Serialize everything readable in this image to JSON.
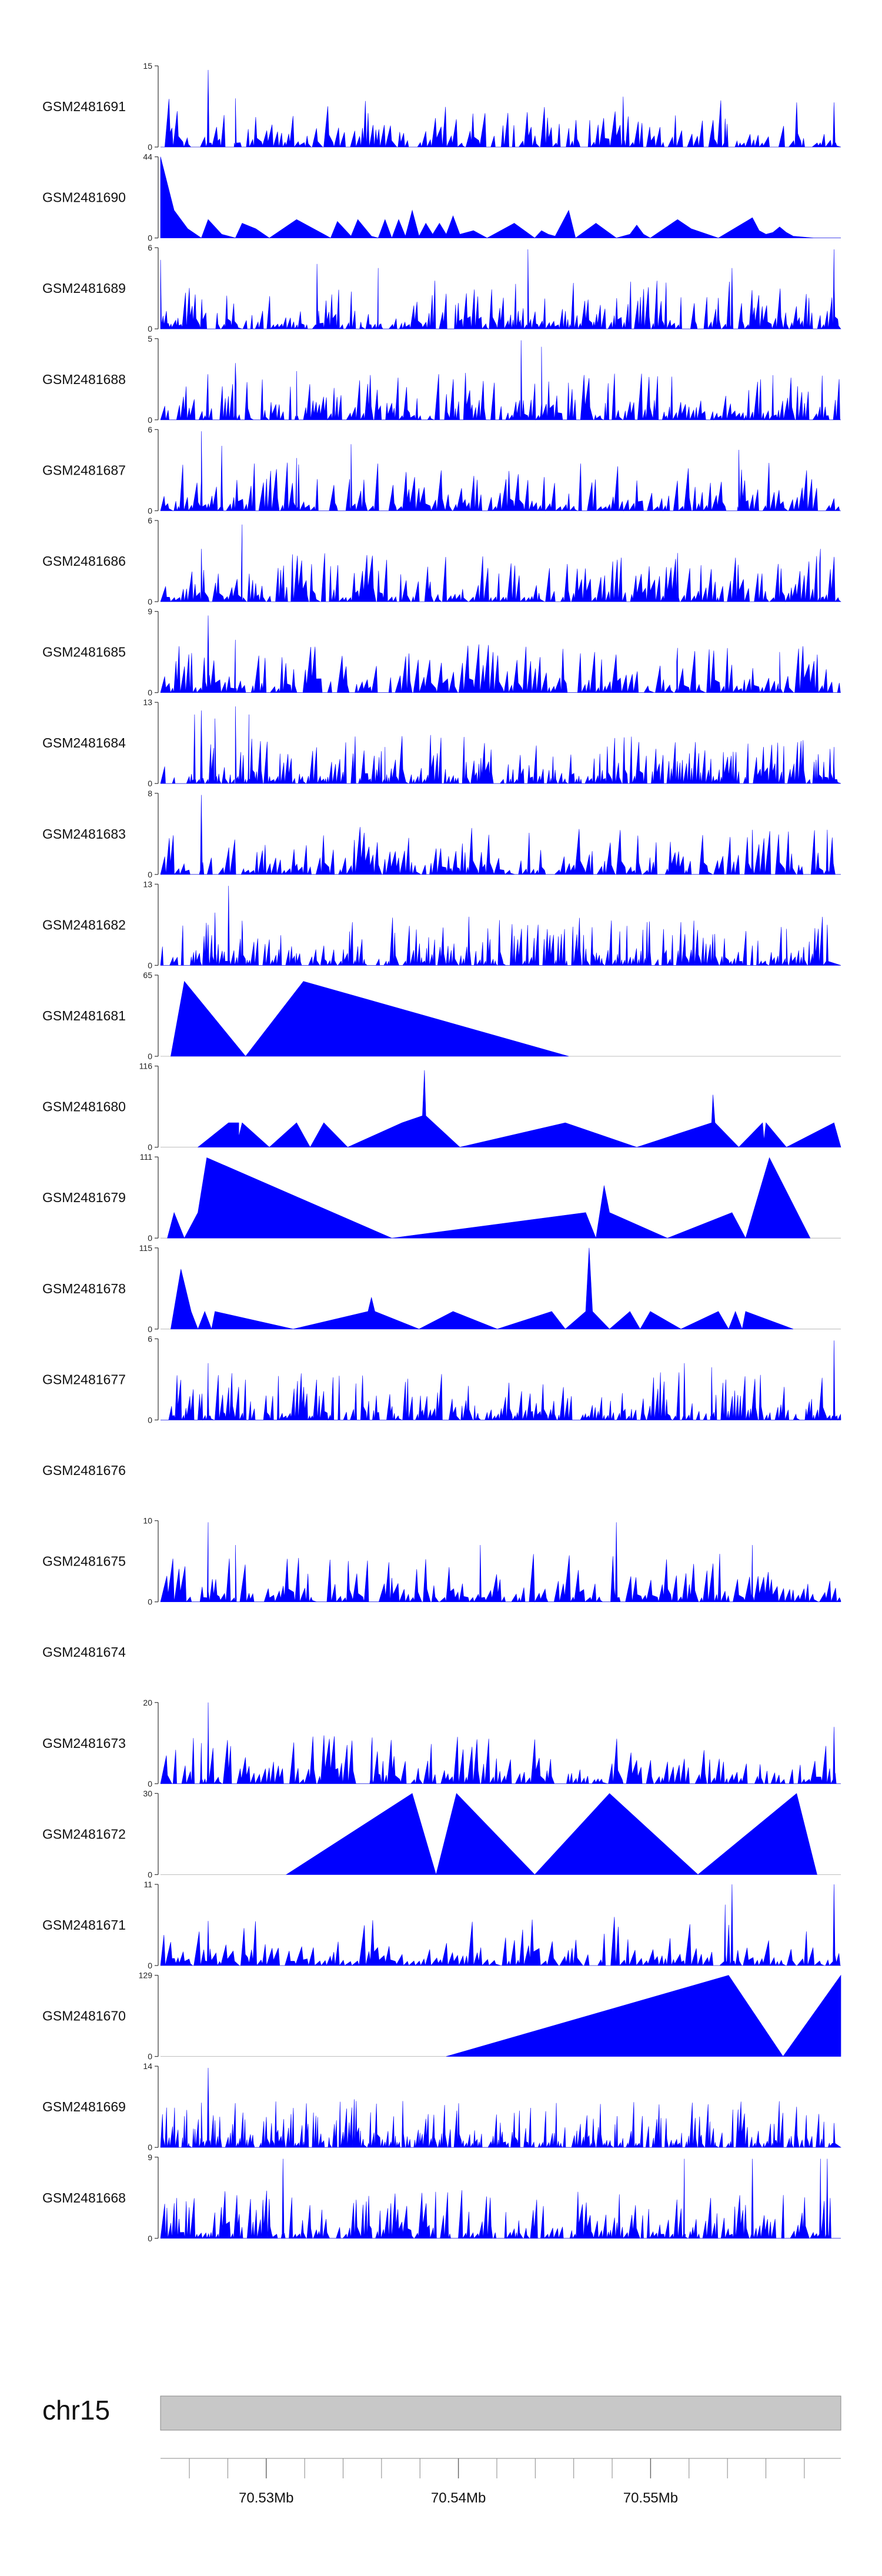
{
  "chart_data": {
    "type": "area",
    "color": "#0000ff",
    "xlim": [
      70.5245,
      70.5599
    ],
    "chromosome": "chr15",
    "ideogram_color": "#c8c8c8",
    "position_ticks": [
      {
        "value": 70.53,
        "label": "70.53Mb"
      },
      {
        "value": 70.54,
        "label": "70.54Mb"
      },
      {
        "value": 70.55,
        "label": "70.55Mb"
      }
    ],
    "tracks": [
      {
        "name": "GSM2481691",
        "ymin": 0,
        "ymax": 15,
        "style": "dense",
        "seed": 91,
        "density": 150,
        "peaks": [
          [
            0.07,
            0.95
          ],
          [
            0.11,
            0.6
          ],
          [
            0.68,
            0.62
          ],
          [
            0.99,
            0.55
          ],
          [
            0.83,
            0.35
          ]
        ]
      },
      {
        "name": "GSM2481690",
        "ymin": 0,
        "ymax": 44,
        "points": [
          [
            0.0,
            0.0
          ],
          [
            0.0,
            44
          ],
          [
            0.02,
            15
          ],
          [
            0.04,
            5
          ],
          [
            0.06,
            0
          ],
          [
            0.07,
            10
          ],
          [
            0.09,
            2
          ],
          [
            0.11,
            0
          ],
          [
            0.12,
            8
          ],
          [
            0.14,
            5
          ],
          [
            0.16,
            0
          ],
          [
            0.2,
            10
          ],
          [
            0.24,
            2
          ],
          [
            0.25,
            0
          ],
          [
            0.26,
            9
          ],
          [
            0.28,
            1
          ],
          [
            0.29,
            10
          ],
          [
            0.31,
            1
          ],
          [
            0.32,
            0
          ],
          [
            0.33,
            10
          ],
          [
            0.34,
            0
          ],
          [
            0.35,
            10
          ],
          [
            0.36,
            1
          ],
          [
            0.37,
            15
          ],
          [
            0.38,
            1
          ],
          [
            0.39,
            8
          ],
          [
            0.4,
            2
          ],
          [
            0.41,
            8
          ],
          [
            0.42,
            2
          ],
          [
            0.43,
            12
          ],
          [
            0.44,
            2
          ],
          [
            0.46,
            4
          ],
          [
            0.48,
            0
          ],
          [
            0.52,
            8
          ],
          [
            0.55,
            0
          ],
          [
            0.56,
            4
          ],
          [
            0.57,
            2
          ],
          [
            0.58,
            1
          ],
          [
            0.6,
            15
          ],
          [
            0.61,
            0
          ],
          [
            0.64,
            8
          ],
          [
            0.67,
            0
          ],
          [
            0.69,
            2
          ],
          [
            0.7,
            7
          ],
          [
            0.71,
            2
          ],
          [
            0.72,
            0
          ],
          [
            0.74,
            5
          ],
          [
            0.76,
            10
          ],
          [
            0.78,
            5
          ],
          [
            0.82,
            0
          ],
          [
            0.87,
            11
          ],
          [
            0.88,
            4
          ],
          [
            0.89,
            2
          ],
          [
            0.9,
            3
          ],
          [
            0.91,
            6
          ],
          [
            0.92,
            3
          ],
          [
            0.93,
            1
          ],
          [
            0.96,
            0
          ],
          [
            1.0,
            0
          ]
        ]
      },
      {
        "name": "GSM2481689",
        "ymin": 0,
        "ymax": 6,
        "style": "dense",
        "seed": 89,
        "density": 200,
        "peaks": [
          [
            0.54,
            0.98
          ],
          [
            0.0,
            0.85
          ],
          [
            0.23,
            0.8
          ],
          [
            0.32,
            0.75
          ],
          [
            0.84,
            0.75
          ],
          [
            0.99,
            0.98
          ]
        ]
      },
      {
        "name": "GSM2481688",
        "ymin": 0,
        "ymax": 5,
        "style": "dense",
        "seed": 88,
        "density": 190,
        "peaks": [
          [
            0.53,
            0.98
          ],
          [
            0.56,
            0.9
          ],
          [
            0.11,
            0.7
          ],
          [
            0.2,
            0.6
          ],
          [
            0.9,
            0.55
          ]
        ]
      },
      {
        "name": "GSM2481687",
        "ymin": 0,
        "ymax": 6,
        "style": "dense",
        "seed": 87,
        "density": 160,
        "peaks": [
          [
            0.06,
            0.98
          ],
          [
            0.28,
            0.82
          ],
          [
            0.09,
            0.8
          ],
          [
            0.85,
            0.75
          ],
          [
            0.2,
            0.65
          ]
        ]
      },
      {
        "name": "GSM2481686",
        "ymin": 0,
        "ymax": 6,
        "style": "dense",
        "seed": 86,
        "density": 170,
        "peaks": [
          [
            0.12,
            0.95
          ],
          [
            0.06,
            0.65
          ],
          [
            0.97,
            0.65
          ],
          [
            0.76,
            0.6
          ]
        ]
      },
      {
        "name": "GSM2481685",
        "ymin": 0,
        "ymax": 9,
        "style": "dense",
        "seed": 85,
        "density": 150,
        "peaks": [
          [
            0.07,
            0.95
          ],
          [
            0.11,
            0.65
          ],
          [
            0.76,
            0.55
          ],
          [
            0.91,
            0.5
          ]
        ]
      },
      {
        "name": "GSM2481684",
        "ymin": 0,
        "ymax": 13,
        "style": "dense",
        "seed": 84,
        "density": 220,
        "peaks": [
          [
            0.06,
            0.9
          ],
          [
            0.11,
            0.95
          ],
          [
            0.05,
            0.85
          ],
          [
            0.08,
            0.8
          ],
          [
            0.13,
            0.85
          ],
          [
            0.33,
            0.45
          ],
          [
            0.99,
            0.45
          ]
        ]
      },
      {
        "name": "GSM2481683",
        "ymin": 0,
        "ymax": 8,
        "style": "dense",
        "seed": 83,
        "density": 160,
        "peaks": [
          [
            0.06,
            0.98
          ],
          [
            0.98,
            0.55
          ],
          [
            0.87,
            0.55
          ]
        ]
      },
      {
        "name": "GSM2481682",
        "ymin": 0,
        "ymax": 13,
        "style": "dense",
        "seed": 82,
        "density": 220,
        "peaks": [
          [
            0.1,
            0.98
          ],
          [
            0.08,
            0.65
          ],
          [
            0.12,
            0.55
          ],
          [
            0.07,
            0.5
          ],
          [
            0.98,
            0.5
          ],
          [
            0.92,
            0.45
          ]
        ]
      },
      {
        "name": "GSM2481681",
        "ymin": 0,
        "ymax": 65,
        "points": [
          [
            0.015,
            0
          ],
          [
            0.035,
            60
          ],
          [
            0.125,
            0
          ],
          [
            0.21,
            60
          ],
          [
            0.6,
            0
          ]
        ]
      },
      {
        "name": "GSM2481680",
        "ymin": 0,
        "ymax": 116,
        "points": [
          [
            0.055,
            0
          ],
          [
            0.1,
            35
          ],
          [
            0.115,
            35
          ],
          [
            0.115,
            15
          ],
          [
            0.12,
            35
          ],
          [
            0.16,
            0
          ],
          [
            0.2,
            35
          ],
          [
            0.22,
            0
          ],
          [
            0.24,
            35
          ],
          [
            0.275,
            0
          ],
          [
            0.355,
            35
          ],
          [
            0.385,
            45
          ],
          [
            0.388,
            110
          ],
          [
            0.39,
            45
          ],
          [
            0.44,
            0
          ],
          [
            0.595,
            35
          ],
          [
            0.7,
            0
          ],
          [
            0.81,
            35
          ],
          [
            0.812,
            75
          ],
          [
            0.815,
            35
          ],
          [
            0.85,
            0
          ],
          [
            0.885,
            35
          ],
          [
            0.887,
            10
          ],
          [
            0.89,
            35
          ],
          [
            0.92,
            0
          ],
          [
            0.99,
            35
          ],
          [
            1.0,
            0
          ]
        ]
      },
      {
        "name": "GSM2481679",
        "ymin": 0,
        "ymax": 111,
        "points": [
          [
            0.01,
            0
          ],
          [
            0.02,
            35
          ],
          [
            0.035,
            0
          ],
          [
            0.055,
            35
          ],
          [
            0.068,
            110
          ],
          [
            0.34,
            0
          ],
          [
            0.625,
            35
          ],
          [
            0.64,
            0
          ],
          [
            0.652,
            72
          ],
          [
            0.66,
            35
          ],
          [
            0.745,
            0
          ],
          [
            0.84,
            35
          ],
          [
            0.86,
            0
          ],
          [
            0.895,
            110
          ],
          [
            0.955,
            0
          ]
        ]
      },
      {
        "name": "GSM2481678",
        "ymin": 0,
        "ymax": 115,
        "points": [
          [
            0.015,
            0
          ],
          [
            0.03,
            85
          ],
          [
            0.045,
            25
          ],
          [
            0.055,
            0
          ],
          [
            0.065,
            25
          ],
          [
            0.075,
            0
          ],
          [
            0.08,
            25
          ],
          [
            0.195,
            0
          ],
          [
            0.305,
            25
          ],
          [
            0.31,
            45
          ],
          [
            0.315,
            25
          ],
          [
            0.38,
            0
          ],
          [
            0.43,
            25
          ],
          [
            0.495,
            0
          ],
          [
            0.575,
            25
          ],
          [
            0.595,
            0
          ],
          [
            0.625,
            25
          ],
          [
            0.63,
            115
          ],
          [
            0.635,
            25
          ],
          [
            0.66,
            0
          ],
          [
            0.69,
            25
          ],
          [
            0.705,
            0
          ],
          [
            0.72,
            25
          ],
          [
            0.765,
            0
          ],
          [
            0.82,
            25
          ],
          [
            0.835,
            0
          ],
          [
            0.845,
            25
          ],
          [
            0.855,
            0
          ],
          [
            0.86,
            25
          ],
          [
            0.93,
            0
          ]
        ]
      },
      {
        "name": "GSM2481677",
        "ymin": 0,
        "ymax": 6,
        "style": "dense",
        "seed": 77,
        "density": 210,
        "peaks": [
          [
            0.07,
            0.7
          ],
          [
            0.99,
            0.98
          ],
          [
            0.77,
            0.7
          ],
          [
            0.81,
            0.65
          ]
        ]
      },
      {
        "name": "GSM2481676",
        "ymin": null,
        "ymax": null,
        "empty": true
      },
      {
        "name": "GSM2481675",
        "ymin": 0,
        "ymax": 10,
        "style": "dense",
        "seed": 75,
        "density": 140,
        "peaks": [
          [
            0.07,
            0.98
          ],
          [
            0.67,
            0.98
          ],
          [
            0.11,
            0.7
          ],
          [
            0.47,
            0.7
          ],
          [
            0.87,
            0.7
          ]
        ]
      },
      {
        "name": "GSM2481674",
        "ymin": null,
        "ymax": null,
        "empty": true
      },
      {
        "name": "GSM2481673",
        "ymin": 0,
        "ymax": 20,
        "style": "dense",
        "seed": 73,
        "density": 160,
        "peaks": [
          [
            0.07,
            1.0
          ],
          [
            0.99,
            0.7
          ],
          [
            0.06,
            0.5
          ],
          [
            0.31,
            0.45
          ]
        ]
      },
      {
        "name": "GSM2481672",
        "ymin": 0,
        "ymax": 30,
        "points": [
          [
            0.185,
            0
          ],
          [
            0.37,
            30
          ],
          [
            0.405,
            0
          ],
          [
            0.435,
            30
          ],
          [
            0.55,
            0
          ],
          [
            0.66,
            30
          ],
          [
            0.79,
            0
          ],
          [
            0.935,
            30
          ],
          [
            0.965,
            0
          ]
        ]
      },
      {
        "name": "GSM2481671",
        "ymin": 0,
        "ymax": 11,
        "style": "dense",
        "seed": 71,
        "density": 130,
        "peaks": [
          [
            0.84,
            1.0
          ],
          [
            0.99,
            1.0
          ],
          [
            0.07,
            0.55
          ],
          [
            0.83,
            0.75
          ]
        ]
      },
      {
        "name": "GSM2481670",
        "ymin": 0,
        "ymax": 129,
        "points": [
          [
            0.42,
            0
          ],
          [
            0.835,
            129
          ],
          [
            0.915,
            0
          ],
          [
            1.0,
            129
          ]
        ]
      },
      {
        "name": "GSM2481669",
        "ymin": 0,
        "ymax": 14,
        "style": "dense",
        "seed": 69,
        "density": 260,
        "peaks": [
          [
            0.07,
            0.98
          ],
          [
            0.06,
            0.55
          ],
          [
            0.99,
            0.3
          ]
        ]
      },
      {
        "name": "GSM2481668",
        "ymin": 0,
        "ymax": 9,
        "style": "dense",
        "seed": 68,
        "density": 190,
        "peaks": [
          [
            0.18,
            0.98
          ],
          [
            0.77,
            0.98
          ],
          [
            0.87,
            0.98
          ],
          [
            0.97,
            0.98
          ],
          [
            0.98,
            0.98
          ]
        ]
      }
    ]
  }
}
